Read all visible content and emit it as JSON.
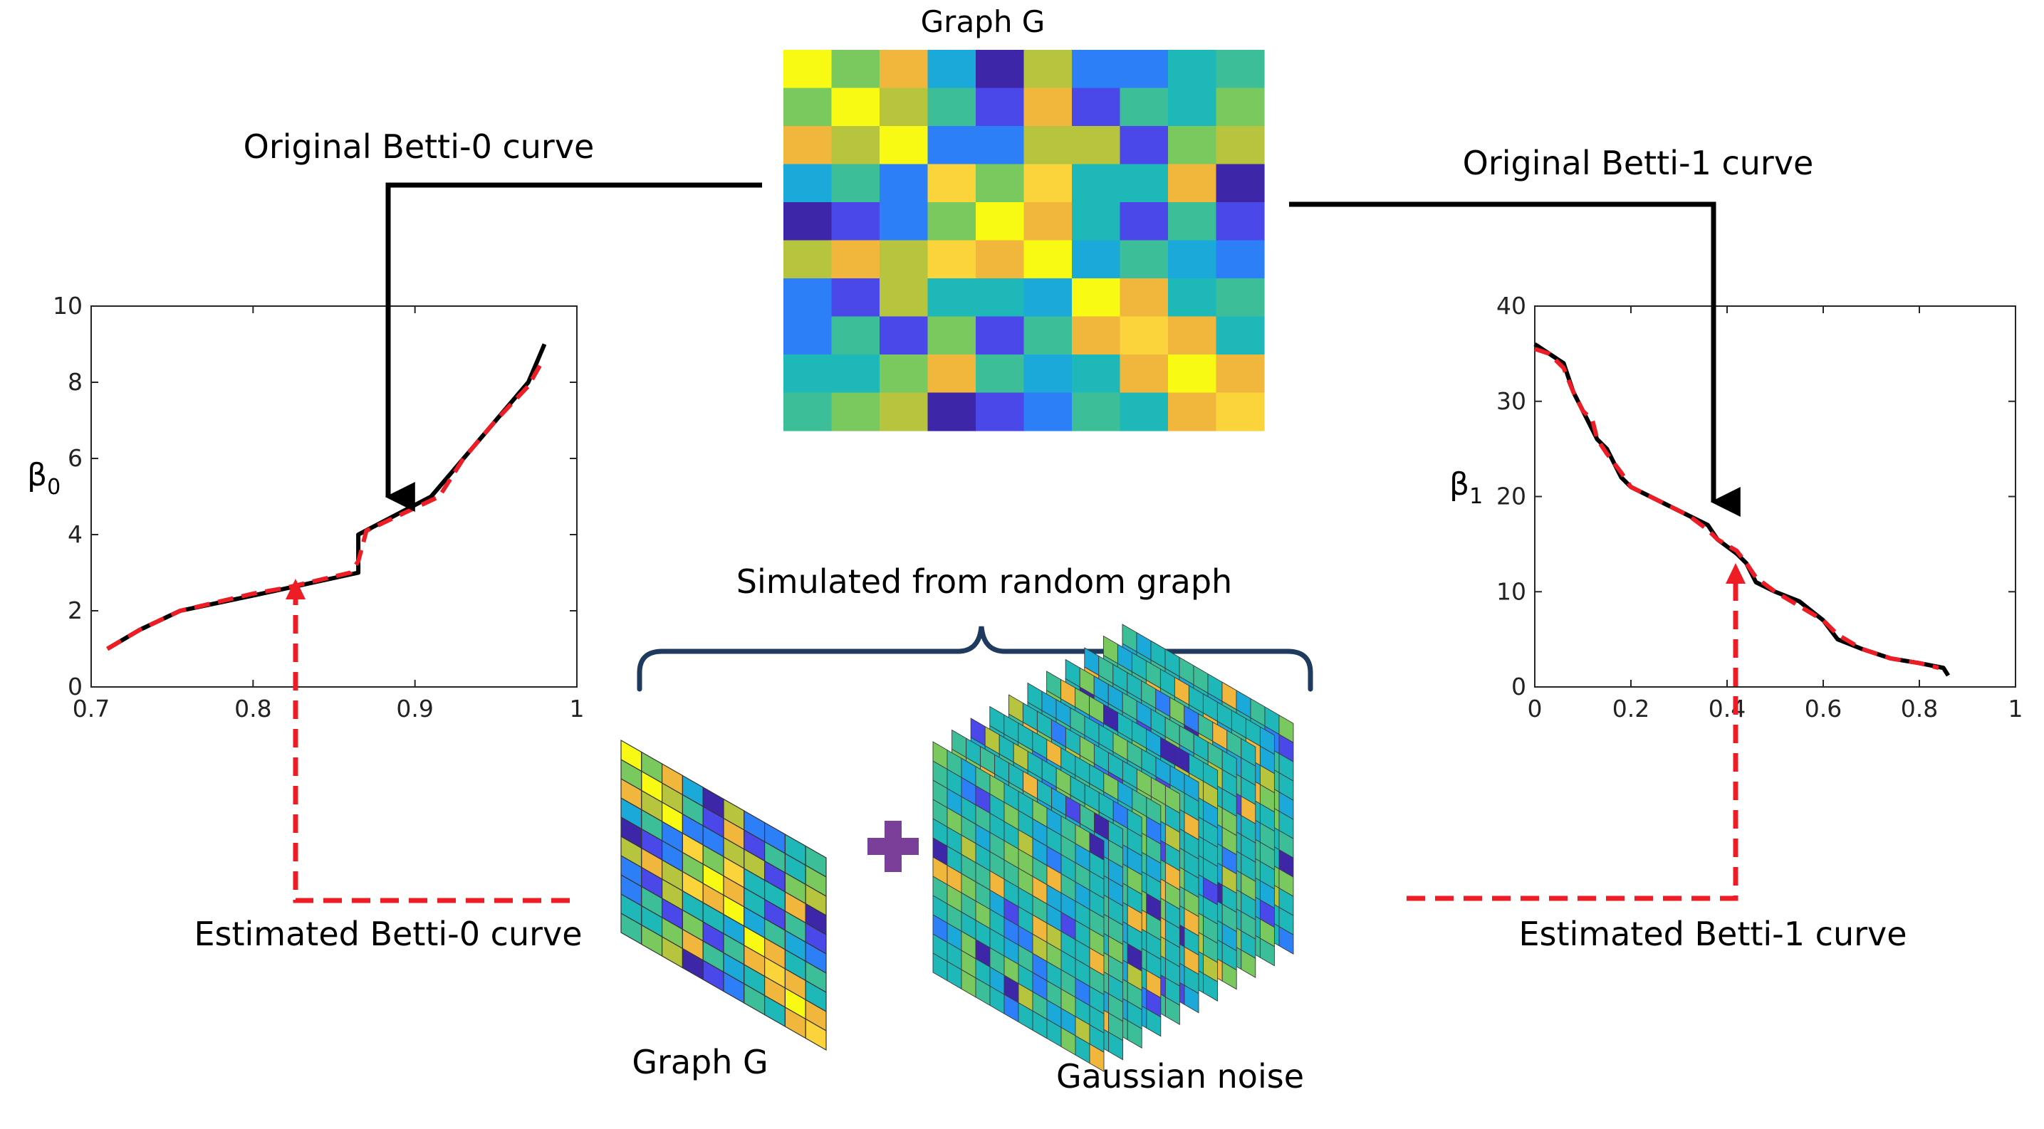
{
  "labels": {
    "graph_top": "Graph G",
    "orig_b0": "Original Betti-0 curve",
    "orig_b1": "Original Betti-1 curve",
    "simulated": "Simulated from random graph",
    "est_b0": "Estimated Betti-0 curve",
    "est_b1": "Estimated Betti-1 curve",
    "graph_bottom": "Graph G",
    "noise": "Gaussian noise",
    "b0_axis_main": "β",
    "b0_axis_sub": "0",
    "b1_axis_main": "β",
    "b1_axis_sub": "1"
  },
  "colors": {
    "arrow_black": "#000000",
    "arrow_red": "#ee1c25",
    "brace": "#1f3a5f",
    "plus": "#7a3f98",
    "palette": [
      "#3e26a8",
      "#4a48e8",
      "#2c7ff6",
      "#1aa9d8",
      "#1fb8b8",
      "#3cbf98",
      "#7ac95e",
      "#b6c43e",
      "#f0b73c",
      "#fbd33a",
      "#f9fa14"
    ]
  },
  "heatmap_top": {
    "cells": [
      [
        10,
        6,
        8,
        3,
        0,
        7,
        2,
        2,
        4,
        5
      ],
      [
        6,
        10,
        7,
        5,
        1,
        8,
        1,
        5,
        4,
        6
      ],
      [
        8,
        7,
        10,
        2,
        2,
        7,
        7,
        1,
        6,
        7
      ],
      [
        3,
        5,
        2,
        9,
        6,
        9,
        4,
        4,
        8,
        0
      ],
      [
        0,
        1,
        2,
        6,
        10,
        8,
        4,
        1,
        5,
        1
      ],
      [
        7,
        8,
        7,
        9,
        8,
        10,
        3,
        5,
        3,
        2
      ],
      [
        2,
        1,
        7,
        4,
        4,
        3,
        10,
        8,
        4,
        5
      ],
      [
        2,
        5,
        1,
        6,
        1,
        5,
        8,
        9,
        8,
        4
      ],
      [
        4,
        4,
        6,
        8,
        5,
        3,
        4,
        8,
        10,
        8
      ],
      [
        5,
        6,
        7,
        0,
        1,
        2,
        5,
        4,
        8,
        9
      ]
    ]
  },
  "chart_data": [
    {
      "type": "line",
      "title": "Original Betti-0 curve",
      "xlabel": "",
      "ylabel": "β0",
      "xlim": [
        0.7,
        1
      ],
      "ylim": [
        0,
        10
      ],
      "xticks": [
        "0.7",
        "0.8",
        "0.9",
        "1"
      ],
      "yticks": [
        "0",
        "2",
        "4",
        "6",
        "8",
        "10"
      ],
      "xtick_values": [
        0.7,
        0.8,
        0.9,
        1
      ],
      "ytick_values": [
        0,
        2,
        4,
        6,
        8,
        10
      ],
      "series": [
        {
          "name": "Original Betti-0 curve",
          "style": "solid",
          "x": [
            0.71,
            0.73,
            0.755,
            0.8,
            0.865,
            0.865,
            0.91,
            0.93,
            0.95,
            0.97,
            0.98
          ],
          "y": [
            1,
            1.5,
            2,
            2.4,
            3,
            4,
            5,
            6,
            7,
            8,
            9
          ]
        },
        {
          "name": "Estimated Betti-0 curve",
          "style": "dashed",
          "x": [
            0.71,
            0.73,
            0.755,
            0.8,
            0.82,
            0.86,
            0.865,
            0.87,
            0.91,
            0.915,
            0.93,
            0.95,
            0.97,
            0.978
          ],
          "y": [
            1,
            1.5,
            2,
            2.45,
            2.6,
            3.0,
            3.3,
            4.1,
            4.9,
            5.0,
            6,
            7,
            7.9,
            8.5
          ]
        }
      ]
    },
    {
      "type": "line",
      "title": "Original Betti-1 curve",
      "xlabel": "",
      "ylabel": "β1",
      "xlim": [
        0,
        1
      ],
      "ylim": [
        0,
        40
      ],
      "xticks": [
        "0",
        "0.2",
        "0.4",
        "0.6",
        "0.8",
        "1"
      ],
      "yticks": [
        "0",
        "10",
        "20",
        "30",
        "40"
      ],
      "xtick_values": [
        0,
        0.2,
        0.4,
        0.6,
        0.8,
        1
      ],
      "ytick_values": [
        0,
        10,
        20,
        30,
        40
      ],
      "series": [
        {
          "name": "Original Betti-1 curve",
          "style": "solid",
          "x": [
            0,
            0.03,
            0.06,
            0.08,
            0.1,
            0.12,
            0.13,
            0.15,
            0.18,
            0.2,
            0.24,
            0.28,
            0.32,
            0.36,
            0.38,
            0.42,
            0.44,
            0.46,
            0.5,
            0.55,
            0.6,
            0.63,
            0.68,
            0.74,
            0.8,
            0.85,
            0.86
          ],
          "y": [
            36,
            35,
            34,
            31,
            29,
            27,
            26,
            25,
            22,
            21,
            20,
            19,
            18,
            17,
            15.5,
            14,
            13,
            11,
            10,
            9,
            7,
            5,
            4,
            3,
            2.5,
            2,
            1.2
          ]
        },
        {
          "name": "Estimated Betti-1 curve",
          "style": "dashed",
          "x": [
            0,
            0.03,
            0.06,
            0.08,
            0.1,
            0.12,
            0.13,
            0.15,
            0.18,
            0.2,
            0.24,
            0.28,
            0.32,
            0.36,
            0.38,
            0.42,
            0.44,
            0.46,
            0.5,
            0.55,
            0.6,
            0.63,
            0.68,
            0.74,
            0.8,
            0.84
          ],
          "y": [
            35.5,
            35,
            33.5,
            31,
            29,
            28,
            26,
            24.5,
            22.5,
            21,
            20,
            19,
            18,
            16.5,
            15.5,
            14.3,
            13,
            11.5,
            10,
            8.5,
            7,
            5.5,
            4,
            3,
            2.5,
            2
          ]
        }
      ]
    }
  ]
}
